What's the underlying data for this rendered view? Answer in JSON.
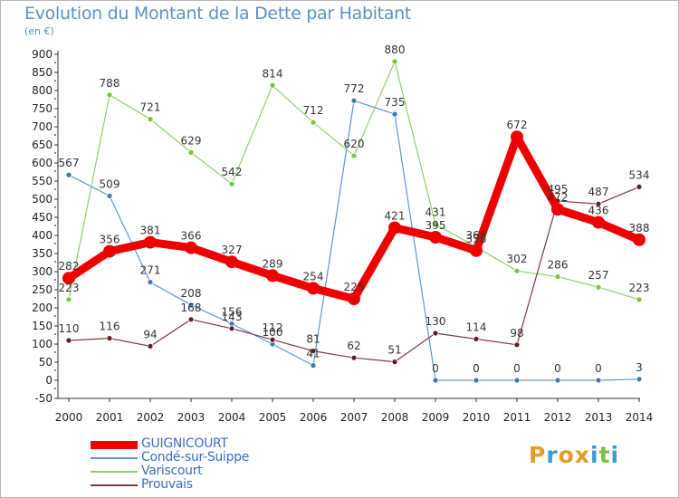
{
  "title": "Evolution du Montant de la Dette par Habitant",
  "subtitle": "(en €)",
  "logo": {
    "letters": [
      "P",
      "r",
      "o",
      "x",
      "i",
      "t",
      "i"
    ],
    "colors": [
      "#e59a2a",
      "#3d9bd4",
      "#e59a2a",
      "#e59a2a",
      "#3d9bd4",
      "#7fbf3f",
      "#3d9bd4"
    ]
  },
  "chart_data": {
    "type": "line",
    "title": "Evolution du Montant de la Dette par Habitant",
    "ylabel": "(en €)",
    "xlabel": "",
    "x": [
      "2000",
      "2001",
      "2002",
      "2003",
      "2004",
      "2005",
      "2006",
      "2007",
      "2008",
      "2009",
      "2010",
      "2011",
      "2012",
      "2013",
      "2014"
    ],
    "ylim": [
      -50,
      900
    ],
    "yticks": [
      -50,
      0,
      50,
      100,
      150,
      200,
      250,
      300,
      350,
      400,
      450,
      500,
      550,
      600,
      650,
      700,
      750,
      800,
      850,
      900
    ],
    "grid": false,
    "legend_position": "bottom-left",
    "series": [
      {
        "name": "GUIGNICOURT",
        "color": "#ee0000",
        "emphasis": true,
        "values": [
          282,
          356,
          381,
          366,
          327,
          289,
          254,
          225,
          421,
          395,
          358,
          672,
          472,
          436,
          388
        ]
      },
      {
        "name": "Condé-sur-Suippe",
        "color": "#5b97d0",
        "point_color": "#3a78b8",
        "values": [
          567,
          509,
          271,
          208,
          156,
          100,
          41,
          772,
          735,
          0,
          0,
          0,
          0,
          0,
          3
        ]
      },
      {
        "name": "Variscourt",
        "color": "#8fd070",
        "point_color": "#79c43a",
        "values": [
          223,
          788,
          721,
          629,
          542,
          814,
          712,
          620,
          880,
          431,
          368,
          302,
          286,
          257,
          223
        ]
      },
      {
        "name": "Prouvais",
        "color": "#7a3b43",
        "point_color": "#5e1f28",
        "values": [
          110,
          116,
          94,
          168,
          143,
          112,
          81,
          62,
          51,
          130,
          114,
          98,
          495,
          487,
          534
        ]
      }
    ]
  }
}
